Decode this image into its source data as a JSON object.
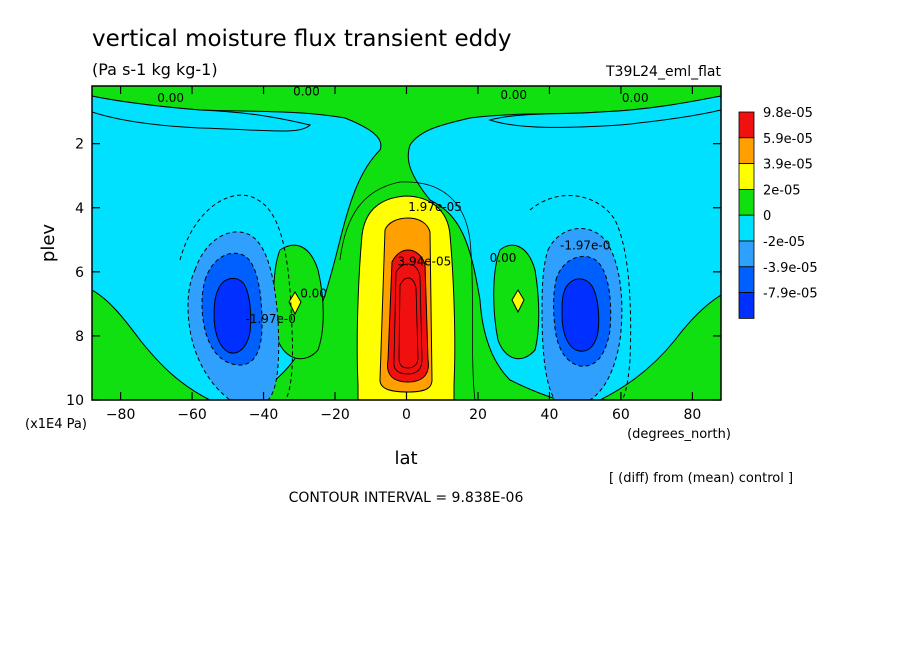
{
  "chart_data": {
    "type": "heatmap",
    "title": "vertical moisture flux transient eddy",
    "units": "(Pa s-1 kg kg-1)",
    "run_label": "T39L24_eml_flat",
    "xlabel": "lat",
    "x_units": "(degrees_north)",
    "ylabel": "plev",
    "y_units": "(x1E4 Pa)",
    "xlim": [
      -88,
      88
    ],
    "ylim": [
      0.2,
      10
    ],
    "y_inverted": true,
    "x_ticks": [
      -80,
      -60,
      -40,
      -20,
      0,
      20,
      40,
      60,
      80
    ],
    "y_ticks": [
      2,
      4,
      6,
      8,
      10
    ],
    "note": "[ (diff) from (mean) control ]",
    "contour_interval": "CONTOUR INTERVAL = 9.838E-06",
    "contour_labels": [
      {
        "text": "0.00",
        "lat": -66,
        "plev": 0.7
      },
      {
        "text": "0.00",
        "lat": -28,
        "plev": 0.5
      },
      {
        "text": "0.00",
        "lat": 30,
        "plev": 0.6
      },
      {
        "text": "0.00",
        "lat": 64,
        "plev": 0.7
      },
      {
        "text": "1.97e-05",
        "lat": 8,
        "plev": 4.1
      },
      {
        "text": "3.94e-05",
        "lat": 5,
        "plev": 5.8
      },
      {
        "text": "0.00",
        "lat": -26,
        "plev": 6.8
      },
      {
        "text": "0.00",
        "lat": 27,
        "plev": 5.7
      },
      {
        "text": "-1.97e-0",
        "lat": -38,
        "plev": 7.6
      },
      {
        "text": "-1.97e-0",
        "lat": 50,
        "plev": 5.3
      }
    ],
    "legend": {
      "placement": "right",
      "labels": [
        "9.8e-05",
        "5.9e-05",
        "3.9e-05",
        "2e-05",
        "0",
        "-2e-05",
        "-3.9e-05",
        "-7.9e-05"
      ],
      "colors": [
        "#f01010",
        "#ffa000",
        "#ffff00",
        "#10e010",
        "#00e0ff",
        "#30a0ff",
        "#0060ff",
        "#0030ff"
      ]
    }
  }
}
